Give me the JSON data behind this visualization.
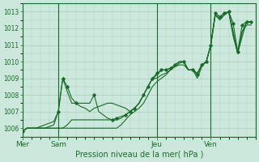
{
  "background_color": "#cce8dc",
  "grid_color": "#aaccbb",
  "line_color": "#1a6b2a",
  "title": "Pression niveau de la mer( hPa )",
  "ylim": [
    1005.5,
    1013.5
  ],
  "yticks": [
    1006,
    1007,
    1008,
    1009,
    1010,
    1011,
    1012,
    1013
  ],
  "day_labels": [
    "Mer",
    "Sam",
    "Jeu",
    "Ven"
  ],
  "day_positions": [
    0,
    8,
    30,
    42
  ],
  "xlim": [
    0,
    52
  ],
  "series": [
    {
      "x": [
        0,
        1,
        2,
        3,
        4,
        5,
        6,
        7,
        8,
        9,
        10,
        11,
        12,
        13,
        14,
        15,
        16,
        17,
        18,
        19,
        20,
        21,
        22,
        23,
        24,
        25,
        26,
        27,
        28,
        29,
        30,
        31,
        32,
        33,
        34,
        35,
        36,
        37,
        38,
        39,
        40,
        41,
        42,
        43,
        44,
        45,
        46,
        47,
        48,
        49,
        50,
        51
      ],
      "y": [
        1005.8,
        1006.0,
        1006.0,
        1006.0,
        1006.1,
        1006.2,
        1006.3,
        1006.4,
        1007.0,
        1009.0,
        1008.5,
        1007.8,
        1007.5,
        1007.5,
        1007.5,
        1007.5,
        1008.0,
        1007.0,
        1006.8,
        1006.6,
        1006.5,
        1006.6,
        1006.7,
        1006.8,
        1007.0,
        1007.2,
        1007.5,
        1008.0,
        1008.5,
        1009.0,
        1009.3,
        1009.5,
        1009.5,
        1009.6,
        1009.8,
        1010.0,
        1010.0,
        1009.5,
        1009.5,
        1009.2,
        1009.8,
        1010.0,
        1011.0,
        1012.9,
        1012.7,
        1012.9,
        1013.0,
        1012.3,
        1010.6,
        1012.2,
        1012.4,
        1012.4
      ]
    },
    {
      "x": [
        0,
        1,
        2,
        3,
        4,
        5,
        6,
        7,
        8,
        9,
        10,
        11,
        12,
        13,
        14,
        15,
        16,
        17,
        18,
        19,
        20,
        21,
        22,
        23,
        24,
        25,
        26,
        27,
        28,
        29,
        30,
        31,
        32,
        33,
        34,
        35,
        36,
        37,
        38,
        39,
        40,
        41,
        42,
        43,
        44,
        45,
        46,
        47,
        48,
        49,
        50,
        51
      ],
      "y": [
        1005.8,
        1006.0,
        1006.0,
        1006.0,
        1006.0,
        1006.0,
        1006.1,
        1006.2,
        1007.0,
        1009.0,
        1008.2,
        1007.5,
        1007.5,
        1007.3,
        1007.2,
        1007.0,
        1007.2,
        1007.3,
        1007.4,
        1007.5,
        1007.5,
        1007.4,
        1007.3,
        1007.2,
        1007.0,
        1007.2,
        1007.5,
        1008.0,
        1008.5,
        1009.0,
        1009.2,
        1009.5,
        1009.5,
        1009.6,
        1009.8,
        1010.0,
        1010.0,
        1009.5,
        1009.5,
        1009.0,
        1009.7,
        1010.0,
        1011.0,
        1012.9,
        1012.7,
        1012.9,
        1013.0,
        1011.8,
        1010.5,
        1011.8,
        1012.2,
        1012.2
      ]
    },
    {
      "x": [
        0,
        1,
        2,
        3,
        4,
        5,
        6,
        7,
        8,
        9,
        10,
        11,
        12,
        13,
        14,
        15,
        16,
        17,
        18,
        19,
        20,
        21,
        22,
        23,
        24,
        25,
        26,
        27,
        28,
        29,
        30,
        31,
        32,
        33,
        34,
        35,
        36,
        37,
        38,
        39,
        40,
        41,
        42,
        43,
        44,
        45,
        46,
        47,
        48,
        49,
        50,
        51
      ],
      "y": [
        1005.8,
        1006.0,
        1006.0,
        1006.0,
        1006.0,
        1006.0,
        1006.0,
        1006.0,
        1006.0,
        1006.0,
        1006.2,
        1006.5,
        1006.5,
        1006.5,
        1006.5,
        1006.5,
        1006.5,
        1006.5,
        1006.5,
        1006.5,
        1006.5,
        1006.5,
        1006.6,
        1006.8,
        1007.0,
        1007.2,
        1007.5,
        1008.0,
        1008.5,
        1009.0,
        1009.0,
        1009.2,
        1009.3,
        1009.5,
        1009.7,
        1009.8,
        1009.8,
        1009.5,
        1009.5,
        1009.3,
        1009.8,
        1010.0,
        1011.0,
        1012.8,
        1012.6,
        1012.8,
        1013.0,
        1011.7,
        1010.5,
        1011.8,
        1012.4,
        1012.4
      ]
    },
    {
      "x": [
        0,
        1,
        2,
        3,
        4,
        5,
        6,
        7,
        8,
        9,
        10,
        11,
        12,
        13,
        14,
        15,
        16,
        17,
        18,
        19,
        20,
        21,
        22,
        23,
        24,
        25,
        26,
        27,
        28,
        29,
        30,
        31,
        32,
        33,
        34,
        35,
        36,
        37,
        38,
        39,
        40,
        41,
        42,
        43,
        44,
        45,
        46,
        47,
        48,
        49,
        50,
        51
      ],
      "y": [
        1005.8,
        1006.0,
        1006.0,
        1006.0,
        1006.0,
        1006.0,
        1006.0,
        1006.0,
        1006.0,
        1006.0,
        1006.0,
        1006.0,
        1006.0,
        1006.0,
        1006.0,
        1006.0,
        1006.0,
        1006.0,
        1006.0,
        1006.0,
        1006.0,
        1006.0,
        1006.2,
        1006.5,
        1006.8,
        1007.0,
        1007.2,
        1007.5,
        1008.0,
        1008.5,
        1008.8,
        1009.0,
        1009.2,
        1009.5,
        1009.7,
        1009.9,
        1010.0,
        1009.5,
        1009.5,
        1009.3,
        1009.8,
        1010.0,
        1011.0,
        1012.8,
        1012.5,
        1012.8,
        1013.0,
        1011.5,
        1010.5,
        1011.5,
        1012.4,
        1012.4
      ]
    }
  ],
  "markers": [
    {
      "x": [
        0,
        8,
        9,
        10,
        12,
        16,
        20,
        21,
        23,
        24,
        25,
        27,
        28,
        29,
        30,
        31,
        32,
        33,
        34,
        36,
        38,
        39,
        40,
        41,
        42,
        43,
        44,
        45,
        46,
        47,
        48,
        49,
        50,
        51
      ],
      "y": [
        1005.8,
        1007.0,
        1009.0,
        1008.5,
        1007.5,
        1008.0,
        1006.5,
        1006.6,
        1006.8,
        1007.0,
        1007.2,
        1008.0,
        1008.5,
        1009.0,
        1009.3,
        1009.5,
        1009.5,
        1009.6,
        1009.8,
        1010.0,
        1009.5,
        1009.2,
        1009.8,
        1010.0,
        1011.0,
        1012.9,
        1012.7,
        1012.9,
        1013.0,
        1012.3,
        1010.6,
        1012.2,
        1012.4,
        1012.4
      ]
    }
  ]
}
